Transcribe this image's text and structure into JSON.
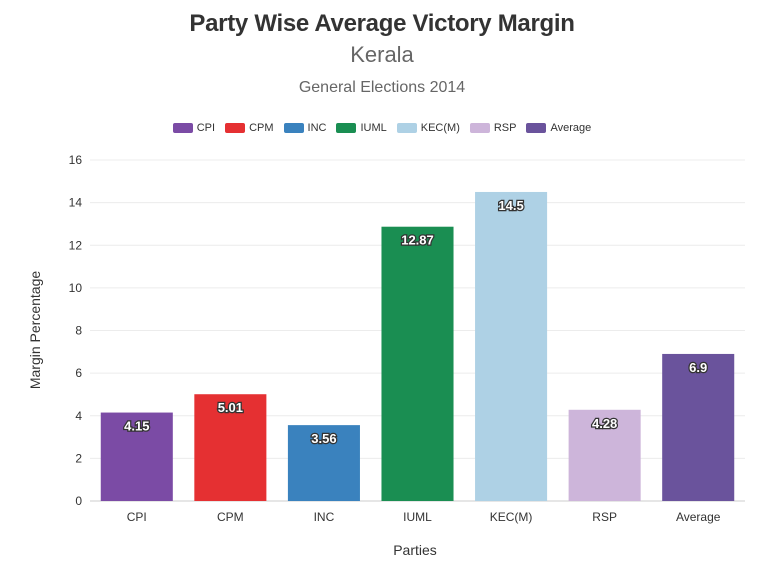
{
  "chart_data": {
    "type": "bar",
    "title": "Party Wise Average Victory Margin",
    "subtitle": "Kerala",
    "subtitle2": "General Elections 2014",
    "xlabel": "Parties",
    "ylabel": "Margin Percentage",
    "categories": [
      "CPI",
      "CPM",
      "INC",
      "IUML",
      "KEC(M)",
      "RSP",
      "Average"
    ],
    "values": [
      4.15,
      5.01,
      3.56,
      12.87,
      14.5,
      4.28,
      6.9
    ],
    "value_labels": [
      "4.15",
      "5.01",
      "3.56",
      "12.87",
      "14.5",
      "4.28",
      "6.9"
    ],
    "colors": [
      "#7b4ba5",
      "#e53032",
      "#3a82be",
      "#1a8e52",
      "#aed1e5",
      "#cdb5da",
      "#6a539c"
    ],
    "yticks": [
      "0",
      "2",
      "4",
      "6",
      "8",
      "10",
      "12",
      "14",
      "16"
    ],
    "ylim": [
      0,
      16
    ],
    "grid": true,
    "legend_position": "top-center"
  }
}
